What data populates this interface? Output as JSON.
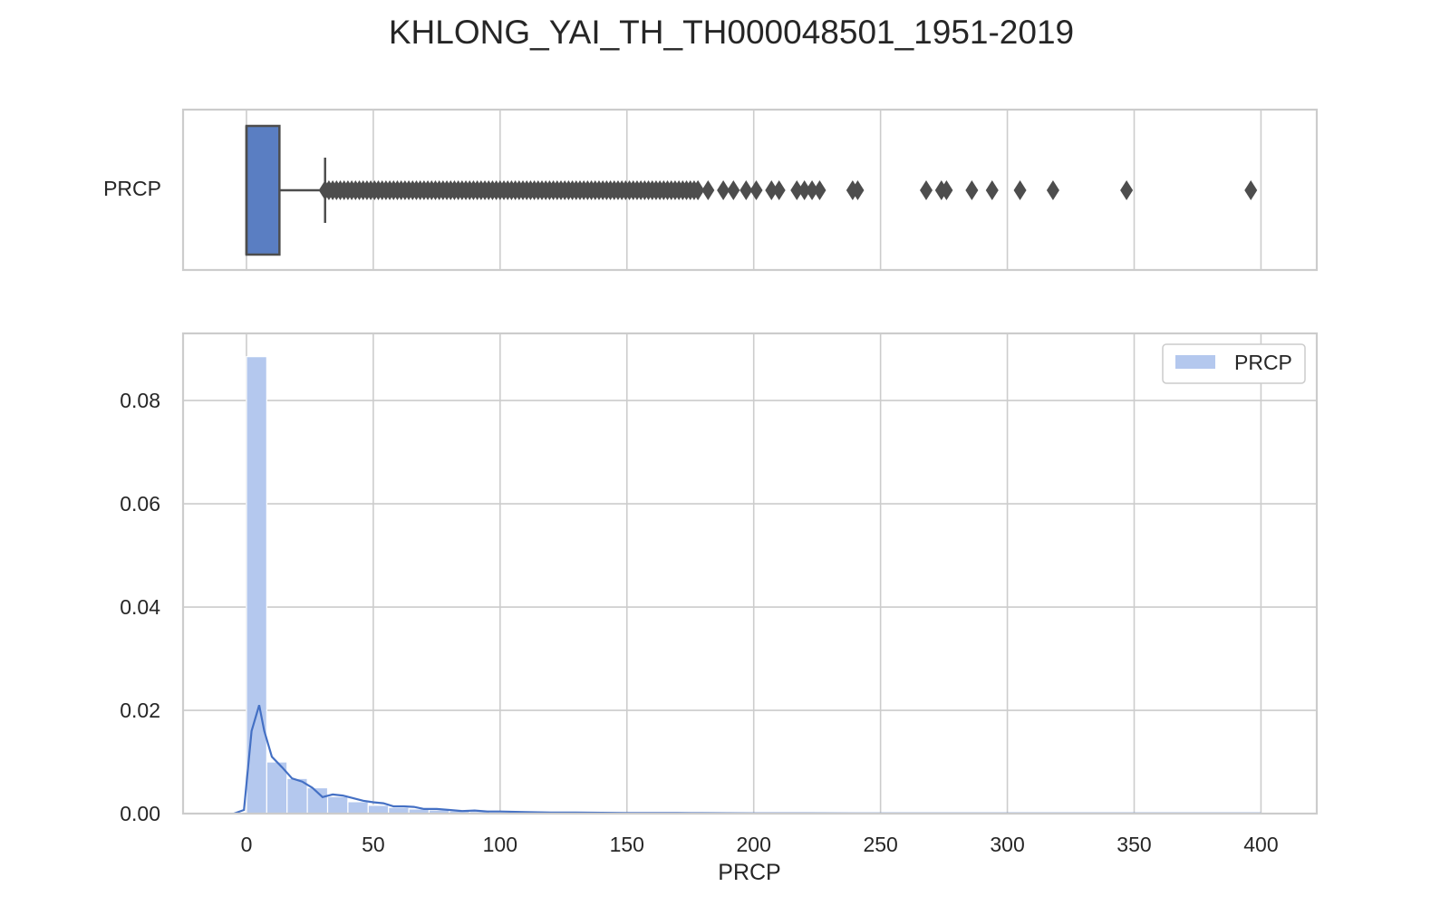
{
  "chart_data": [
    {
      "type": "box",
      "title": "KHLONG_YAI_TH_TH000048501_1951-2019",
      "ytick_label": "PRCP",
      "xlim": [
        -25,
        422
      ],
      "box": {
        "q1": 0,
        "q3": 13,
        "median": 0,
        "whisker_low": 0,
        "whisker_high": 31,
        "outlier_dense_range": [
          31,
          178
        ],
        "outliers": [
          178,
          182,
          188,
          192,
          197,
          201,
          207,
          210,
          217,
          220,
          223,
          226,
          239,
          241,
          268,
          274,
          276,
          286,
          294,
          305,
          318,
          347,
          396
        ],
        "color": "#5A7EC2",
        "outline_color": "#4D4D4D"
      },
      "grid": true
    },
    {
      "type": "histogram",
      "xlabel": "PRCP",
      "xlim": [
        -25,
        422
      ],
      "ylim": [
        0,
        0.093
      ],
      "xticks": [
        0,
        50,
        100,
        150,
        200,
        250,
        300,
        350,
        400
      ],
      "yticks": [
        0.0,
        0.02,
        0.04,
        0.06,
        0.08
      ],
      "ytick_labels": [
        "0.00",
        "0.02",
        "0.04",
        "0.06",
        "0.08"
      ],
      "legend": {
        "label": "PRCP",
        "placement": "top-right"
      },
      "bin_width": 8,
      "bins": [
        0,
        8,
        16,
        24,
        32,
        40,
        48,
        56,
        64,
        72,
        80,
        88,
        96,
        104,
        112,
        120,
        128,
        136,
        144,
        152,
        160,
        168,
        176,
        184,
        192,
        200,
        208,
        216,
        224,
        232,
        240,
        248,
        256,
        264,
        272,
        280,
        288,
        296,
        304,
        312,
        320,
        328,
        336,
        344,
        352,
        360,
        368,
        376,
        384,
        392
      ],
      "density": [
        0.0885,
        0.01,
        0.0068,
        0.005,
        0.0033,
        0.0023,
        0.0016,
        0.0012,
        0.0009,
        0.0007,
        0.0005,
        0.0004,
        0.0003,
        0.00025,
        0.0002,
        0.00016,
        0.00013,
        0.0001,
        9e-05,
        8e-05,
        7e-05,
        6e-05,
        5e-05,
        4e-05,
        4e-05,
        3e-05,
        3e-05,
        3e-05,
        2e-05,
        2e-05,
        2e-05,
        2e-05,
        2e-05,
        1e-05,
        1e-05,
        1e-05,
        1e-05,
        1e-05,
        1e-05,
        1e-05,
        1e-05,
        1e-05,
        1e-05,
        1e-05,
        1e-05,
        1e-05,
        1e-05,
        1e-05,
        1e-05,
        1e-05
      ],
      "kde_x": [
        -5,
        -1,
        2,
        5,
        7,
        10,
        14,
        18,
        22,
        26,
        30,
        34,
        38,
        42,
        46,
        50,
        54,
        58,
        62,
        66,
        70,
        75,
        80,
        85,
        90,
        95,
        100,
        110,
        120,
        130,
        140,
        150,
        160,
        170,
        180,
        200,
        220,
        240,
        260,
        280,
        300,
        320,
        340,
        360,
        380,
        400
      ],
      "kde_y": [
        0.0,
        0.0007,
        0.016,
        0.021,
        0.016,
        0.011,
        0.009,
        0.0068,
        0.0062,
        0.005,
        0.0032,
        0.0037,
        0.0035,
        0.003,
        0.0025,
        0.0022,
        0.002,
        0.0014,
        0.0014,
        0.0013,
        0.0009,
        0.0009,
        0.0007,
        0.0005,
        0.0006,
        0.0004,
        0.0004,
        0.0003,
        0.0002,
        0.0002,
        0.00015,
        0.00012,
        0.0001,
        0.0001,
        8e-05,
        6e-05,
        5e-05,
        4e-05,
        3e-05,
        3e-05,
        2e-05,
        2e-05,
        2e-05,
        2e-05,
        2e-05,
        2e-05
      ],
      "bar_color": "#B4C8EE",
      "line_color": "#4470C4",
      "grid": true
    }
  ]
}
